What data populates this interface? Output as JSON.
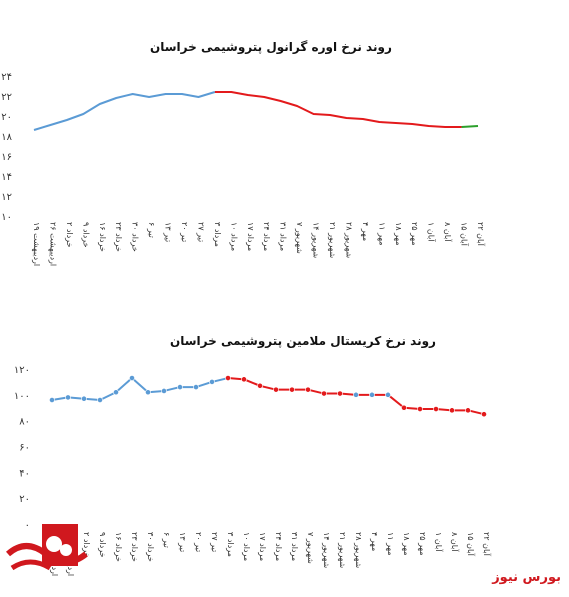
{
  "brand": {
    "name": "بورس نیوز",
    "color": "#d0181e"
  },
  "chart_data": [
    {
      "type": "line",
      "title": "روند نرخ اوره گرانول پتروشیمی خراسان",
      "xlabel": "",
      "ylabel": "",
      "ylim": [
        10,
        24
      ],
      "yticks": [
        "۱۰",
        "۱۲",
        "۱۴",
        "۱۶",
        "۱۸",
        "۲۰",
        "۲۲",
        "۲۴"
      ],
      "categories": [
        "۱۹اردیبهشت",
        "۲۶اردیبهشت",
        "۲خرداد",
        "۹خرداد",
        "۱۶خرداد",
        "۲۳خرداد",
        "۳۰خرداد",
        "۶تیر",
        "۱۳تیر",
        "۲۰تیر",
        "۲۷تیر",
        "۳مرداد",
        "۱۰مرداد",
        "۱۷مرداد",
        "۲۴مرداد",
        "۳۱مرداد",
        "۷شهریور",
        "۱۴شهریور",
        "۲۱شهریور",
        "۲۸شهریور",
        "۴مهر",
        "۱۱مهر",
        "۱۸مهر",
        "۲۵مهر",
        "۱آبان",
        "۸آبان",
        "۱۵آبان",
        "۲۲آبان"
      ],
      "tick_labels": [
        "۱۹ اردیبهشت",
        "۲۶ اردیبهشت",
        "۲ خرداد",
        "۹ خرداد",
        "۱۶ خرداد",
        "۲۳ خرداد",
        "۳۰ خرداد",
        "۶ تیر",
        "۱۳ تیر",
        "۲۰ تیر",
        "۲۷ تیر",
        "۳ مرداد",
        "۱۰ مرداد",
        "۱۷ مرداد",
        "۲۴ مرداد",
        "۳۱ مرداد",
        "۷ شهریور",
        "۱۴ شهریور",
        "۲۱ شهریور",
        "۲۸ شهریور",
        "۴ مهر",
        "۱۱ مهر",
        "۱۸ مهر",
        "۲۵ مهر",
        "۱ آبان",
        "۸ آبان",
        "۱۵ آبان",
        "۲۲ آبان"
      ],
      "segments": [
        {
          "color": "#5b9bd5",
          "start": 0,
          "end": 11
        },
        {
          "color": "#e31a1c",
          "start": 11,
          "end": 26
        },
        {
          "color": "#2ca02c",
          "start": 26,
          "end": 27
        }
      ],
      "values": [
        18.6,
        19.1,
        19.6,
        20.2,
        21.2,
        21.8,
        22.2,
        21.9,
        22.2,
        22.2,
        21.9,
        22.4,
        22.4,
        22.1,
        21.9,
        21.5,
        21.0,
        20.2,
        20.1,
        19.8,
        19.7,
        19.4,
        19.3,
        19.2,
        19.0,
        18.9,
        18.9,
        19.0
      ],
      "markers": false
    },
    {
      "type": "line",
      "title": "روند نرخ کریستال ملامین پتروشیمی خراسان",
      "xlabel": "",
      "ylabel": "",
      "ylim": [
        0,
        120
      ],
      "yticks": [
        "۰",
        "۲۰",
        "۴۰",
        "۶۰",
        "۸۰",
        "۱۰۰",
        "۱۲۰"
      ],
      "categories": [
        "۱۹اردیبهشت",
        "۲۶اردیبهشت",
        "۲خرداد",
        "۹خرداد",
        "۱۶خرداد",
        "۲۳خرداد",
        "۳۰خرداد",
        "۶تیر",
        "۱۳تیر",
        "۲۰تیر",
        "۲۷تیر",
        "۳مرداد",
        "۱۰مرداد",
        "۱۷مرداد",
        "۲۴مرداد",
        "۳۱مرداد",
        "۷شهریور",
        "۱۴شهریور",
        "۲۱شهریور",
        "۲۸شهریور",
        "۴مهر",
        "۱۱مهر",
        "۱۸مهر",
        "۲۵مهر",
        "۱آبان",
        "۸آبان",
        "۱۵آبان",
        "۲۲آبان"
      ],
      "tick_labels": [
        "۱۹ اردیبهشت",
        "۲۶ اردیبهشت",
        "۲ خرداد",
        "۹ خرداد",
        "۱۶ خرداد",
        "۲۳ خرداد",
        "۳۰ خرداد",
        "۶ تیر",
        "۱۳ تیر",
        "۲۰ تیر",
        "۲۷ تیر",
        "۳ مرداد",
        "۱۰ مرداد",
        "۱۷ مرداد",
        "۲۴ مرداد",
        "۳۱ مرداد",
        "۷ شهریور",
        "۱۴ شهریور",
        "۲۱ شهریور",
        "۲۸ شهریور",
        "۴ مهر",
        "۱۱ مهر",
        "۱۸ مهر",
        "۲۵ مهر",
        "۱ آبان",
        "۸ آبان",
        "۱۵ آبان",
        "۲۲ آبان"
      ],
      "segments": [
        {
          "color": "#5b9bd5",
          "start": 0,
          "end": 11
        },
        {
          "color": "#e31a1c",
          "start": 11,
          "end": 27
        }
      ],
      "values": [
        96,
        98,
        97,
        96,
        102,
        113,
        102,
        103,
        106,
        106,
        110,
        113,
        112,
        107,
        104,
        104,
        104,
        101,
        101,
        100,
        100,
        100,
        90,
        89,
        89,
        88,
        88,
        85
      ],
      "marker_colors": [
        "#5b9bd5",
        "#5b9bd5",
        "#5b9bd5",
        "#5b9bd5",
        "#5b9bd5",
        "#5b9bd5",
        "#5b9bd5",
        "#5b9bd5",
        "#5b9bd5",
        "#5b9bd5",
        "#5b9bd5",
        "#e31a1c",
        "#e31a1c",
        "#e31a1c",
        "#e31a1c",
        "#e31a1c",
        "#e31a1c",
        "#e31a1c",
        "#e31a1c",
        "#5b9bd5",
        "#5b9bd5",
        "#5b9bd5",
        "#e31a1c",
        "#e31a1c",
        "#e31a1c",
        "#e31a1c",
        "#e31a1c",
        "#e31a1c"
      ],
      "markers": true
    }
  ]
}
